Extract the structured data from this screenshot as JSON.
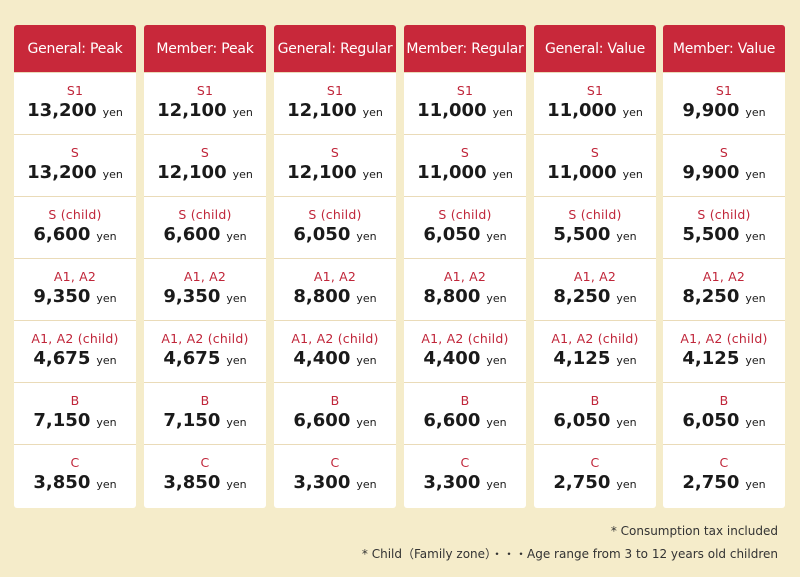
{
  "columns": [
    {
      "header": "General: Peak",
      "rows": [
        {
          "seat": "S1",
          "price": "13,200",
          "unit": "yen"
        },
        {
          "seat": "S",
          "price": "13,200",
          "unit": "yen"
        },
        {
          "seat": "S (child)",
          "price": "6,600",
          "unit": "yen"
        },
        {
          "seat": "A1, A2",
          "price": "9,350",
          "unit": "yen"
        },
        {
          "seat": "A1, A2 (child)",
          "price": "4,675",
          "unit": "yen"
        },
        {
          "seat": "B",
          "price": "7,150",
          "unit": "yen"
        },
        {
          "seat": "C",
          "price": "3,850",
          "unit": "yen"
        }
      ]
    },
    {
      "header": "Member: Peak",
      "rows": [
        {
          "seat": "S1",
          "price": "12,100",
          "unit": "yen"
        },
        {
          "seat": "S",
          "price": "12,100",
          "unit": "yen"
        },
        {
          "seat": "S (child)",
          "price": "6,600",
          "unit": "yen"
        },
        {
          "seat": "A1, A2",
          "price": "9,350",
          "unit": "yen"
        },
        {
          "seat": "A1, A2 (child)",
          "price": "4,675",
          "unit": "yen"
        },
        {
          "seat": "B",
          "price": "7,150",
          "unit": "yen"
        },
        {
          "seat": "C",
          "price": "3,850",
          "unit": "yen"
        }
      ]
    },
    {
      "header": "General: Regular",
      "rows": [
        {
          "seat": "S1",
          "price": "12,100",
          "unit": "yen"
        },
        {
          "seat": "S",
          "price": "12,100",
          "unit": "yen"
        },
        {
          "seat": "S (child)",
          "price": "6,050",
          "unit": "yen"
        },
        {
          "seat": "A1, A2",
          "price": "8,800",
          "unit": "yen"
        },
        {
          "seat": "A1, A2 (child)",
          "price": "4,400",
          "unit": "yen"
        },
        {
          "seat": "B",
          "price": "6,600",
          "unit": "yen"
        },
        {
          "seat": "C",
          "price": "3,300",
          "unit": "yen"
        }
      ]
    },
    {
      "header": "Member: Regular",
      "rows": [
        {
          "seat": "S1",
          "price": "11,000",
          "unit": "yen"
        },
        {
          "seat": "S",
          "price": "11,000",
          "unit": "yen"
        },
        {
          "seat": "S (child)",
          "price": "6,050",
          "unit": "yen"
        },
        {
          "seat": "A1, A2",
          "price": "8,800",
          "unit": "yen"
        },
        {
          "seat": "A1, A2 (child)",
          "price": "4,400",
          "unit": "yen"
        },
        {
          "seat": "B",
          "price": "6,600",
          "unit": "yen"
        },
        {
          "seat": "C",
          "price": "3,300",
          "unit": "yen"
        }
      ]
    },
    {
      "header": "General: Value",
      "rows": [
        {
          "seat": "S1",
          "price": "11,000",
          "unit": "yen"
        },
        {
          "seat": "S",
          "price": "11,000",
          "unit": "yen"
        },
        {
          "seat": "S (child)",
          "price": "5,500",
          "unit": "yen"
        },
        {
          "seat": "A1, A2",
          "price": "8,250",
          "unit": "yen"
        },
        {
          "seat": "A1, A2 (child)",
          "price": "4,125",
          "unit": "yen"
        },
        {
          "seat": "B",
          "price": "6,050",
          "unit": "yen"
        },
        {
          "seat": "C",
          "price": "2,750",
          "unit": "yen"
        }
      ]
    },
    {
      "header": "Member: Value",
      "rows": [
        {
          "seat": "S1",
          "price": "9,900",
          "unit": "yen"
        },
        {
          "seat": "S",
          "price": "9,900",
          "unit": "yen"
        },
        {
          "seat": "S (child)",
          "price": "5,500",
          "unit": "yen"
        },
        {
          "seat": "A1, A2",
          "price": "8,250",
          "unit": "yen"
        },
        {
          "seat": "A1, A2 (child)",
          "price": "4,125",
          "unit": "yen"
        },
        {
          "seat": "B",
          "price": "6,050",
          "unit": "yen"
        },
        {
          "seat": "C",
          "price": "2,750",
          "unit": "yen"
        }
      ]
    }
  ],
  "notes": [
    "* Consumption tax included",
    "* Child（Family zone）・・・Age range from 3 to 12 years old children"
  ],
  "colors": {
    "background": "#f5ecca",
    "header": "#c8283a",
    "seat_label": "#c0263a"
  }
}
